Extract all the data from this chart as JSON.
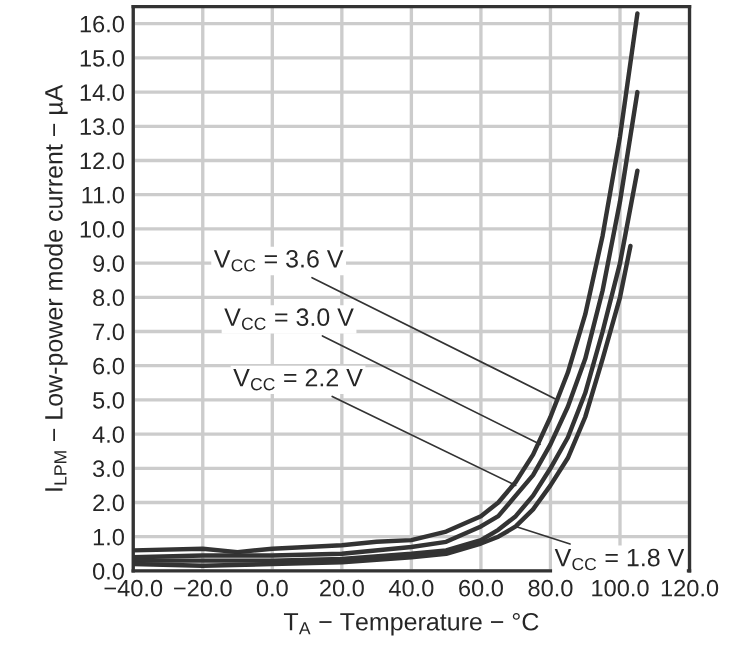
{
  "chart_data": {
    "type": "line",
    "xlabel": "T$_{A}$ − Temperature − °C",
    "ylabel": "I$_{LPM}$ − Low-power mode current − µA",
    "series": [
      {
        "color": "#333333",
        "x": [
          -40,
          -20,
          -10,
          0,
          20,
          30,
          40,
          50,
          60,
          65,
          70,
          75,
          80,
          85,
          90,
          95,
          100,
          105
        ],
        "values": [
          0.6,
          0.65,
          0.55,
          0.65,
          0.75,
          0.85,
          0.9,
          1.15,
          1.6,
          2.0,
          2.6,
          3.4,
          4.5,
          5.8,
          7.5,
          9.8,
          12.7,
          16.3
        ]
      },
      {
        "color": "#333333",
        "x": [
          -40,
          -20,
          0,
          20,
          40,
          50,
          60,
          65,
          70,
          75,
          80,
          85,
          90,
          95,
          100,
          105
        ],
        "values": [
          0.4,
          0.45,
          0.45,
          0.5,
          0.7,
          0.85,
          1.3,
          1.6,
          2.2,
          2.8,
          3.7,
          4.8,
          6.2,
          8.2,
          10.8,
          14.0
        ]
      },
      {
        "color": "#333333",
        "x": [
          -40,
          -20,
          0,
          20,
          40,
          50,
          60,
          65,
          70,
          75,
          80,
          85,
          90,
          95,
          100,
          105
        ],
        "values": [
          0.3,
          0.3,
          0.3,
          0.35,
          0.5,
          0.6,
          0.9,
          1.2,
          1.6,
          2.2,
          3.0,
          3.9,
          5.2,
          7.0,
          9.0,
          11.7
        ]
      },
      {
        "color": "#333333",
        "x": [
          -40,
          -20,
          0,
          20,
          40,
          50,
          60,
          65,
          70,
          75,
          80,
          85,
          90,
          95,
          100,
          103
        ],
        "values": [
          0.2,
          0.15,
          0.2,
          0.25,
          0.4,
          0.5,
          0.8,
          1.0,
          1.3,
          1.8,
          2.5,
          3.3,
          4.5,
          6.2,
          8.0,
          9.5
        ]
      }
    ],
    "annotations": [
      {
        "text": "V$_{CC}$ = 3.6 V",
        "x": 82,
        "y": 5.0
      },
      {
        "text": "V$_{CC}$ = 3.0 V",
        "x": 77,
        "y": 3.7
      },
      {
        "text": "V$_{CC}$ = 2.2 V",
        "x": 70,
        "y": 2.5
      },
      {
        "text": "V$_{CC}$ = 1.8 V",
        "x": 70,
        "y": 1.3
      }
    ],
    "xlim": [
      -40,
      120
    ],
    "xticks": [
      {
        "value": -40,
        "label": "−40.0"
      },
      {
        "value": -20,
        "label": "−20.0"
      },
      {
        "value": 0,
        "label": "0.0"
      },
      {
        "value": 20,
        "label": "20.0"
      },
      {
        "value": 40,
        "label": "40.0"
      },
      {
        "value": 60,
        "label": "60.0"
      },
      {
        "value": 80,
        "label": "80.0"
      },
      {
        "value": 100,
        "label": "100.0"
      },
      {
        "value": 120,
        "label": "120.0"
      }
    ],
    "ylim": [
      0,
      16.5
    ],
    "yticks": [
      {
        "value": 0,
        "label": "0.0"
      },
      {
        "value": 1,
        "label": "1.0"
      },
      {
        "value": 2,
        "label": "2.0"
      },
      {
        "value": 3,
        "label": "3.0"
      },
      {
        "value": 4,
        "label": "4.0"
      },
      {
        "value": 5,
        "label": "5.0"
      },
      {
        "value": 6,
        "label": "6.0"
      },
      {
        "value": 7,
        "label": "7.0"
      },
      {
        "value": 8,
        "label": "8.0"
      },
      {
        "value": 9,
        "label": "9.0"
      },
      {
        "value": 10,
        "label": "10.0"
      },
      {
        "value": 11,
        "label": "11.0"
      },
      {
        "value": 12,
        "label": "12.0"
      },
      {
        "value": 13,
        "label": "13.0"
      },
      {
        "value": 14,
        "label": "14.0"
      },
      {
        "value": 15,
        "label": "15.0"
      },
      {
        "value": 16,
        "label": "16.0"
      }
    ],
    "grid": true,
    "legend": false,
    "marker": "none",
    "line_style": "solid"
  }
}
